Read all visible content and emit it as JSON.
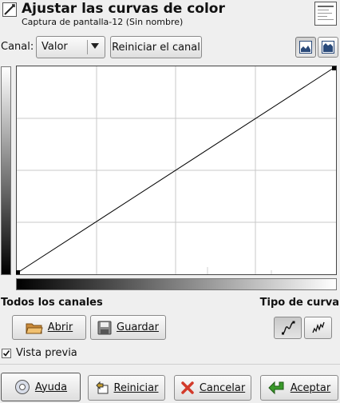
{
  "header": {
    "title": "Ajustar las curvas de color",
    "subtitle": "Captura de pantalla-12 (Sin nombre)"
  },
  "channel": {
    "label": "Canal:",
    "value": "Valor",
    "reset_label": "Reiniciar el canal"
  },
  "sections": {
    "all_channels": "Todos los canales",
    "curve_type": "Tipo de curva"
  },
  "buttons": {
    "open": "Abrir",
    "save": "Guardar",
    "help": "Ayuda",
    "reset": "Reiniciar",
    "cancel": "Cancelar",
    "accept": "Aceptar"
  },
  "preview": {
    "label": "Vista previa",
    "checked": true
  },
  "colors": {
    "accent_green": "#3a9a2a",
    "cancel_red": "#d23a2a"
  },
  "icons": {
    "header": "curves-tool-icon",
    "thumbnail": "image-thumbnail",
    "linear_histogram": "linear-histogram-icon",
    "log_histogram": "log-histogram-icon",
    "smooth_curve": "smooth-curve-icon",
    "freehand_curve": "freehand-curve-icon"
  }
}
